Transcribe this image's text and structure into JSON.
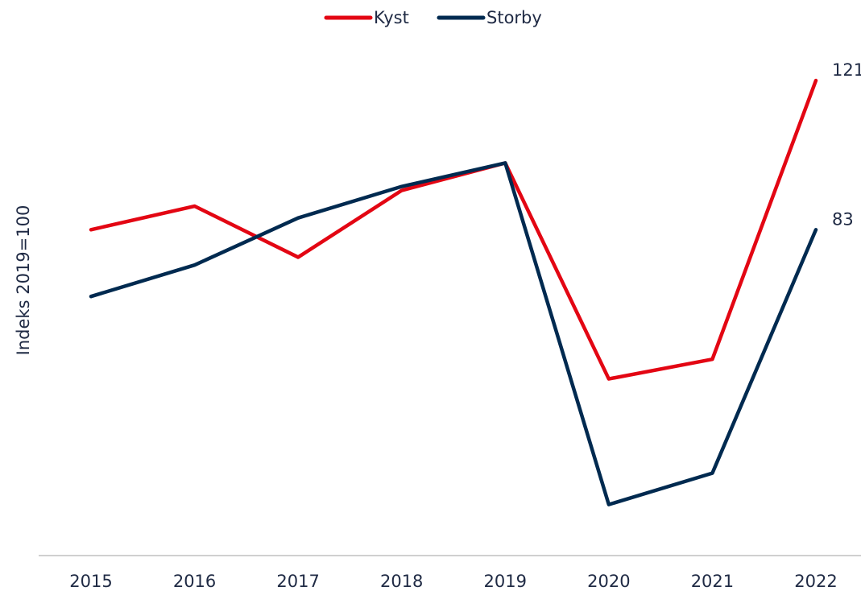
{
  "chart_data": {
    "type": "line",
    "y_label": "Indeks 2019=100",
    "categories": [
      "2015",
      "2016",
      "2017",
      "2018",
      "2019",
      "2020",
      "2021",
      "2022"
    ],
    "series": [
      {
        "name": "Kyst",
        "color": "#e30613",
        "values": [
          83,
          89,
          76,
          93,
          100,
          45,
          50,
          121
        ]
      },
      {
        "name": "Storby",
        "color": "#002a50",
        "values": [
          66,
          74,
          86,
          94,
          100,
          13,
          21,
          83
        ]
      }
    ],
    "ylim": [
      0,
      125
    ],
    "legend": "top",
    "grid": false
  }
}
